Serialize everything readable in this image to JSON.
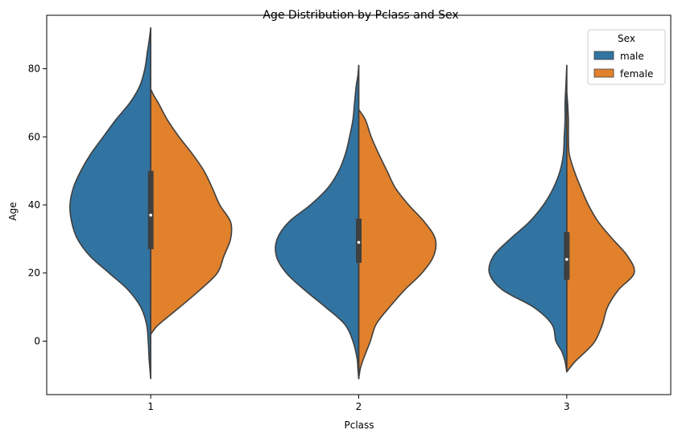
{
  "chart_data": {
    "type": "violin",
    "title": "Age Distribution by Pclass and Sex",
    "xlabel": "Pclass",
    "ylabel": "Age",
    "ylim": [
      -15.7,
      95.7
    ],
    "yticks": [
      0,
      20,
      40,
      60,
      80
    ],
    "categories": [
      "1",
      "2",
      "3"
    ],
    "split": true,
    "grid": false,
    "legend": {
      "title": "Sex",
      "position": "top-right"
    },
    "series": [
      {
        "name": "male",
        "color": "#3274a1"
      },
      {
        "name": "female",
        "color": "#e1812c"
      }
    ],
    "violins": [
      {
        "category": "1",
        "male": {
          "ymin": -11,
          "ymax": 92,
          "profile": [
            [
              -11,
              0
            ],
            [
              -8,
              0.01
            ],
            [
              -5,
              0.02
            ],
            [
              0,
              0.03
            ],
            [
              5,
              0.05
            ],
            [
              10,
              0.12
            ],
            [
              15,
              0.27
            ],
            [
              20,
              0.5
            ],
            [
              25,
              0.73
            ],
            [
              30,
              0.88
            ],
            [
              35,
              0.95
            ],
            [
              40,
              0.97
            ],
            [
              45,
              0.93
            ],
            [
              50,
              0.84
            ],
            [
              55,
              0.72
            ],
            [
              60,
              0.57
            ],
            [
              65,
              0.42
            ],
            [
              70,
              0.25
            ],
            [
              75,
              0.13
            ],
            [
              80,
              0.07
            ],
            [
              85,
              0.04
            ],
            [
              88,
              0.02
            ],
            [
              92,
              0
            ]
          ]
        },
        "female": {
          "ymin": 2,
          "ymax": 74,
          "profile": [
            [
              2,
              0
            ],
            [
              4,
              0.06
            ],
            [
              6,
              0.15
            ],
            [
              10,
              0.35
            ],
            [
              15,
              0.59
            ],
            [
              20,
              0.8
            ],
            [
              25,
              0.88
            ],
            [
              30,
              0.96
            ],
            [
              35,
              0.96
            ],
            [
              40,
              0.83
            ],
            [
              45,
              0.74
            ],
            [
              50,
              0.64
            ],
            [
              55,
              0.5
            ],
            [
              60,
              0.34
            ],
            [
              65,
              0.2
            ],
            [
              70,
              0.09
            ],
            [
              72,
              0.04
            ],
            [
              74,
              0
            ]
          ]
        },
        "box": {
          "q1": 27,
          "median": 37,
          "q3": 50
        }
      },
      {
        "category": "2",
        "male": {
          "ymin": -11,
          "ymax": 81,
          "profile": [
            [
              -11,
              0
            ],
            [
              -8,
              0.01
            ],
            [
              -5,
              0.02
            ],
            [
              0,
              0.07
            ],
            [
              5,
              0.17
            ],
            [
              10,
              0.4
            ],
            [
              15,
              0.65
            ],
            [
              20,
              0.87
            ],
            [
              25,
              0.99
            ],
            [
              30,
              0.98
            ],
            [
              35,
              0.84
            ],
            [
              40,
              0.58
            ],
            [
              45,
              0.37
            ],
            [
              50,
              0.24
            ],
            [
              55,
              0.16
            ],
            [
              60,
              0.11
            ],
            [
              65,
              0.07
            ],
            [
              70,
              0.05
            ],
            [
              75,
              0.03
            ],
            [
              78,
              0.01
            ],
            [
              81,
              0
            ]
          ]
        },
        "female": {
          "ymin": -11,
          "ymax": 68,
          "profile": [
            [
              -11,
              0
            ],
            [
              -8,
              0.02
            ],
            [
              -5,
              0.06
            ],
            [
              0,
              0.14
            ],
            [
              5,
              0.21
            ],
            [
              10,
              0.37
            ],
            [
              15,
              0.55
            ],
            [
              20,
              0.76
            ],
            [
              25,
              0.9
            ],
            [
              30,
              0.92
            ],
            [
              35,
              0.79
            ],
            [
              40,
              0.6
            ],
            [
              45,
              0.44
            ],
            [
              50,
              0.34
            ],
            [
              55,
              0.24
            ],
            [
              60,
              0.15
            ],
            [
              65,
              0.08
            ],
            [
              68,
              0
            ]
          ]
        },
        "box": {
          "q1": 23,
          "median": 29,
          "q3": 36
        }
      },
      {
        "category": "3",
        "male": {
          "ymin": -9,
          "ymax": 81,
          "profile": [
            [
              -9,
              0
            ],
            [
              -6,
              0.02
            ],
            [
              -3,
              0.06
            ],
            [
              0,
              0.13
            ],
            [
              5,
              0.18
            ],
            [
              10,
              0.4
            ],
            [
              15,
              0.77
            ],
            [
              20,
              0.93
            ],
            [
              25,
              0.88
            ],
            [
              30,
              0.68
            ],
            [
              35,
              0.45
            ],
            [
              40,
              0.28
            ],
            [
              45,
              0.16
            ],
            [
              50,
              0.08
            ],
            [
              55,
              0.04
            ],
            [
              60,
              0.03
            ],
            [
              65,
              0.02
            ],
            [
              70,
              0.02
            ],
            [
              75,
              0.01
            ],
            [
              81,
              0
            ]
          ]
        },
        "female": {
          "ymin": -9,
          "ymax": 73,
          "profile": [
            [
              -9,
              0
            ],
            [
              -6,
              0.1
            ],
            [
              -3,
              0.23
            ],
            [
              0,
              0.34
            ],
            [
              5,
              0.43
            ],
            [
              10,
              0.49
            ],
            [
              15,
              0.62
            ],
            [
              20,
              0.81
            ],
            [
              25,
              0.73
            ],
            [
              30,
              0.55
            ],
            [
              35,
              0.38
            ],
            [
              40,
              0.26
            ],
            [
              45,
              0.17
            ],
            [
              50,
              0.09
            ],
            [
              55,
              0.03
            ],
            [
              60,
              0.02
            ],
            [
              65,
              0.02
            ],
            [
              70,
              0.01
            ],
            [
              73,
              0
            ]
          ]
        },
        "box": {
          "q1": 18,
          "median": 24,
          "q3": 32
        }
      }
    ]
  }
}
